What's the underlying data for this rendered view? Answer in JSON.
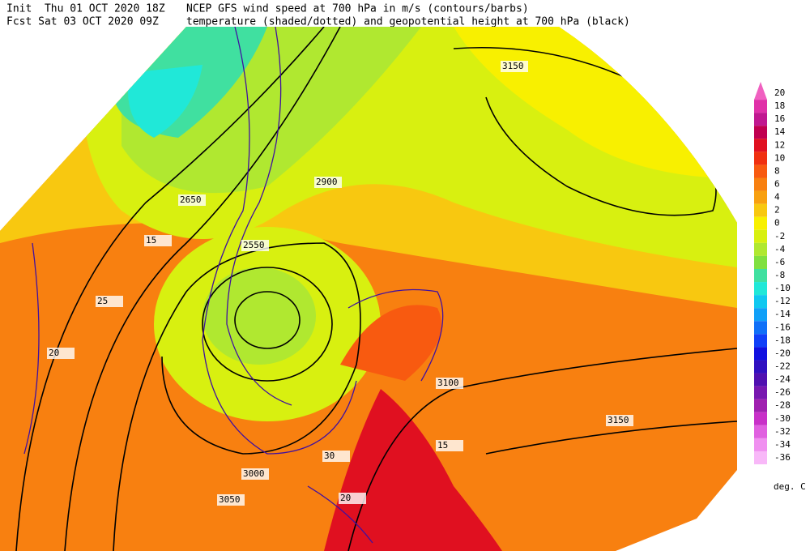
{
  "header": {
    "init": "Init  Thu 01 OCT 2020 18Z",
    "fcst": "Fcst Sat 03 OCT 2020 09Z",
    "line1": "NCEP GFS wind speed at 700 hPa in m/s (contours/barbs)",
    "line2": "temperature (shaded/dotted) and geopotential height at 700 hPa (black)"
  },
  "legend": {
    "unit": "deg. C",
    "items": [
      {
        "value": 20,
        "color": "#f060c0"
      },
      {
        "value": 18,
        "color": "#e030a8"
      },
      {
        "value": 16,
        "color": "#c01890"
      },
      {
        "value": 14,
        "color": "#c00050"
      },
      {
        "value": 12,
        "color": "#e01020"
      },
      {
        "value": 10,
        "color": "#f03010"
      },
      {
        "value": 8,
        "color": "#f85a10"
      },
      {
        "value": 6,
        "color": "#f88010"
      },
      {
        "value": 4,
        "color": "#f8a010"
      },
      {
        "value": 2,
        "color": "#f8c810"
      },
      {
        "value": 0,
        "color": "#f8f000"
      },
      {
        "value": -2,
        "color": "#d8f010"
      },
      {
        "value": -4,
        "color": "#b0e830"
      },
      {
        "value": -6,
        "color": "#80e040"
      },
      {
        "value": -8,
        "color": "#40e0a0"
      },
      {
        "value": -10,
        "color": "#20e8d8"
      },
      {
        "value": -12,
        "color": "#10c8f0"
      },
      {
        "value": -14,
        "color": "#10a0f8"
      },
      {
        "value": -16,
        "color": "#1070f8"
      },
      {
        "value": -18,
        "color": "#1040f8"
      },
      {
        "value": -20,
        "color": "#1010e0"
      },
      {
        "value": -22,
        "color": "#3010c0"
      },
      {
        "value": -24,
        "color": "#5010b0"
      },
      {
        "value": -26,
        "color": "#7818b0"
      },
      {
        "value": -28,
        "color": "#a020b0"
      },
      {
        "value": -30,
        "color": "#c830c8"
      },
      {
        "value": -32,
        "color": "#e060e0"
      },
      {
        "value": -34,
        "color": "#f090f0"
      },
      {
        "value": -36,
        "color": "#f8b8f8"
      }
    ]
  },
  "map": {
    "labels": [
      "3150",
      "2650",
      "2550",
      "3000",
      "3050",
      "3100",
      "3150",
      "2900",
      "15",
      "20",
      "25",
      "30",
      "15",
      "20"
    ]
  }
}
